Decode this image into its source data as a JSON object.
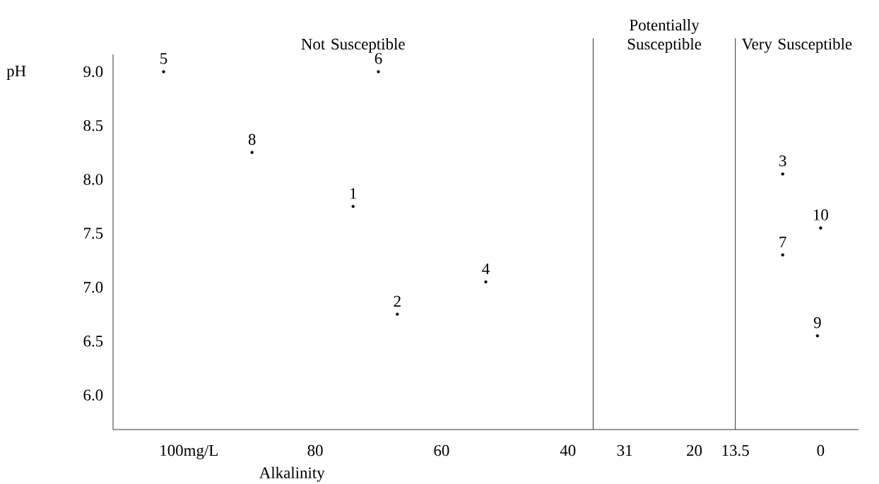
{
  "chart_data": {
    "type": "scatter",
    "xlabel": "Alkalinity",
    "ylabel": "pH",
    "series": [
      {
        "color": "#000000",
        "x": [
          74,
          67,
          6,
          53,
          104,
          70,
          6,
          90,
          0.5,
          0
        ],
        "values": [
          7.75,
          6.75,
          8.05,
          7.05,
          9.0,
          9.0,
          7.3,
          8.25,
          6.55,
          7.55
        ]
      }
    ],
    "marker": "circle",
    "xlim": [
      112,
      -6
    ],
    "ylim": [
      5.68,
      9.16
    ],
    "xticks": [
      {
        "value": 100,
        "label": "100mg/L"
      },
      80,
      60,
      40,
      31,
      20,
      13.5,
      0
    ],
    "yticks": [
      {
        "value": 6,
        "label": "6.0"
      },
      {
        "value": 6.5,
        "label": "6.5"
      },
      {
        "value": 7,
        "label": "7.0"
      },
      {
        "value": 7.5,
        "label": "7.5"
      },
      {
        "value": 8,
        "label": "8.0"
      },
      {
        "value": 8.5,
        "label": "8.5"
      },
      {
        "value": 9,
        "label": "9.0"
      }
    ],
    "ref_lines": [
      {
        "axis": "x",
        "value": 36
      },
      {
        "axis": "x",
        "value": 13.5
      }
    ],
    "annotations": [
      "Not Susceptible",
      "Potentially Susceptible",
      "Very Susceptible",
      {
        "text": "1",
        "x": 74,
        "y": 7.75
      },
      {
        "text": "2",
        "x": 67,
        "y": 6.75
      },
      {
        "text": "3",
        "x": 6,
        "y": 8.05
      },
      {
        "text": "4",
        "x": 53,
        "y": 7.05
      },
      {
        "text": "5",
        "x": 104,
        "y": 9.0
      },
      {
        "text": "6",
        "x": 70,
        "y": 9.0
      },
      {
        "text": "7",
        "x": 6,
        "y": 7.3
      },
      {
        "text": "8",
        "x": 90,
        "y": 8.25
      },
      {
        "text": "9",
        "x": 0.5,
        "y": 6.55
      },
      {
        "text": "10",
        "x": 0,
        "y": 7.55
      }
    ],
    "grid": false
  }
}
